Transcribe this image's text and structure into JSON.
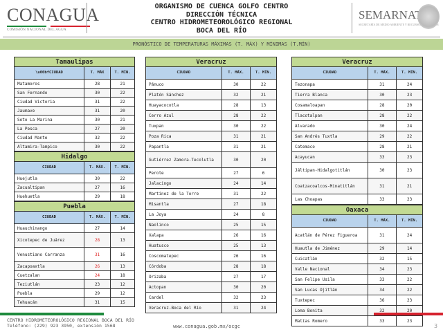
{
  "header": {
    "logo_text": "CONAGUA",
    "logo_sub": "COMISIÓN NACIONAL DEL AGUA",
    "lines": [
      "ORGANISMO DE CUENCA GOLFO CENTRO",
      "DIRECCIÓN TÉCNICA",
      "CENTRO HIDROMETEOROLÓGICO REGIONAL",
      "BOCA DEL RÍO"
    ],
    "right_logo": "SEMARNAT",
    "right_logo_sub": "SECRETARÍA DE MEDIO AMBIENTE Y RECURSOS NATURALES"
  },
  "banner": "PRONÓSTICO DE TEMPERATURAS MÁXIMAS (T. MÁX) Y MÍNIMAS (T.MÍN)",
  "colors": {
    "band": "#bcd595",
    "title_bg": "#c2da93",
    "header_bg": "#b9d3ec",
    "warm": "#e02020",
    "flag_green": "#1d8a3c",
    "flag_red": "#d6222e"
  },
  "columns": [
    [
      {
        "state": "Tamaulipas",
        "headers": [
          "\\u00bfCIUDAD",
          "T. MÁX",
          "T. MÍN."
        ],
        "rows": [
          [
            "Matamoros",
            "28",
            "21"
          ],
          [
            "San Fernando",
            "30",
            "22"
          ],
          [
            "Ciudad Victoria",
            "31",
            "22"
          ],
          [
            "Jaumave",
            "31",
            "20"
          ],
          [
            "Soto La Marina",
            "30",
            "21"
          ],
          [
            "La Pesca",
            "27",
            "20"
          ],
          [
            "Ciudad Mante",
            "32",
            "22"
          ],
          [
            "Altamira-Tampico",
            "30",
            "22"
          ]
        ]
      },
      {
        "state": "Hidalgo",
        "headers": [
          "CIUDAD",
          "T. MÁX.",
          "T. MÍN."
        ],
        "rows": [
          [
            "Huejutla",
            "30",
            "22"
          ],
          [
            "Zacualtipan",
            "27",
            "16"
          ],
          [
            "Huehuetla",
            "29",
            "18"
          ]
        ]
      },
      {
        "state": "Puebla",
        "headers": [
          "CIUDAD",
          "T. MÁX.",
          "T. MÍN."
        ],
        "rows": [
          [
            "Huauchinango",
            "27",
            "14"
          ],
          [
            "Xicotepec de Juárez",
            "28",
            "13",
            true
          ],
          [
            "Venustiano Carranza",
            "31",
            "16",
            true
          ],
          [
            "Zacapoaxtla",
            "26",
            "13",
            true
          ],
          [
            "Cuetzalan",
            "24",
            "18",
            true
          ],
          [
            "Teziutlán",
            "23",
            "12"
          ],
          [
            "Puebla",
            "29",
            "12"
          ],
          [
            "Tehuacán",
            "31",
            "15"
          ]
        ]
      }
    ],
    [
      {
        "state": "Veracruz",
        "headers": [
          "CIUDAD",
          "T. MÁX.",
          "T. MÍN."
        ],
        "rows": [
          [
            "Pánuco",
            "30",
            "22"
          ],
          [
            "Platón Sánchez",
            "32",
            "21"
          ],
          [
            "Huayacocotla",
            "28",
            "13"
          ],
          [
            "Cerro Azul",
            "28",
            "22"
          ],
          [
            "Tuxpan",
            "30",
            "22"
          ],
          [
            "Poza Rica",
            "31",
            "21"
          ],
          [
            "Papantla",
            "31",
            "21"
          ],
          [
            "Gutiérrez Zamora-Tecolutla",
            "30",
            "20"
          ],
          [
            "Perote",
            "27",
            "6"
          ],
          [
            "Jalacingo",
            "24",
            "14"
          ],
          [
            "Martínez de la Torre",
            "31",
            "22"
          ],
          [
            "Misantla",
            "27",
            "18"
          ],
          [
            "La Joya",
            "24",
            "8"
          ],
          [
            "Naolinco",
            "25",
            "15"
          ],
          [
            "Xalapa",
            "26",
            "16"
          ],
          [
            "Huatusco",
            "25",
            "13"
          ],
          [
            "Coscomatepec",
            "26",
            "16"
          ],
          [
            "Córdoba",
            "28",
            "18"
          ],
          [
            "Orizaba",
            "27",
            "17"
          ],
          [
            "Actopan",
            "30",
            "20"
          ],
          [
            "Cardel",
            "32",
            "23"
          ],
          [
            "Veracruz-Boca del Río",
            "31",
            "24"
          ]
        ]
      }
    ],
    [
      {
        "state": "Veracruz",
        "headers": [
          "CIUDAD",
          "T. MÁX.",
          "T. MÍN."
        ],
        "rows": [
          [
            "Tezonapa",
            "31",
            "24"
          ],
          [
            "Tierra Blanca",
            "30",
            "23"
          ],
          [
            "Cosamaloapan",
            "28",
            "20"
          ],
          [
            "Tlacotalpan",
            "28",
            "22"
          ],
          [
            "Alvarado",
            "30",
            "24"
          ],
          [
            "San Andrés Tuxtla",
            "29",
            "22"
          ],
          [
            "Catemaco",
            "28",
            "21"
          ],
          [
            "Acayucan",
            "33",
            "23"
          ],
          [
            "Jáltipan-Hidalgotitlán",
            "30",
            "23"
          ],
          [
            "Coatzacoalcos-Minatitlán",
            "31",
            "21"
          ],
          [
            "Las Choapas",
            "33",
            "23"
          ]
        ]
      },
      {
        "state": "Oaxaca",
        "headers": [
          "CIUDAD",
          "T. MÁX.",
          "T. MÍN."
        ],
        "rows": [
          [
            "Acatlán de Pérez Figueroa",
            "31",
            "24"
          ],
          [
            "Huautla  de Jiménez",
            "29",
            "14"
          ],
          [
            "Cuicatlán",
            "32",
            "15"
          ],
          [
            "Valle Nacional",
            "34",
            "23"
          ],
          [
            "San Felipe Usila",
            "33",
            "22"
          ],
          [
            "San Lucas Ojitlán",
            "34",
            "22"
          ],
          [
            "Tuxtepec",
            "36",
            "23"
          ],
          [
            "Loma Bonita",
            "32",
            "20"
          ],
          [
            "Matías Romero",
            "33",
            "23"
          ]
        ]
      }
    ]
  ],
  "footer": {
    "line1": "CENTRO HIDROMETEOROLÓGICO REGIONAL BOCA DEL RÍO",
    "line2": "Teléfono: (229) 923 3950, extensión 1568",
    "url": "www.conagua.gob.mx/ocgc",
    "page": "3"
  }
}
